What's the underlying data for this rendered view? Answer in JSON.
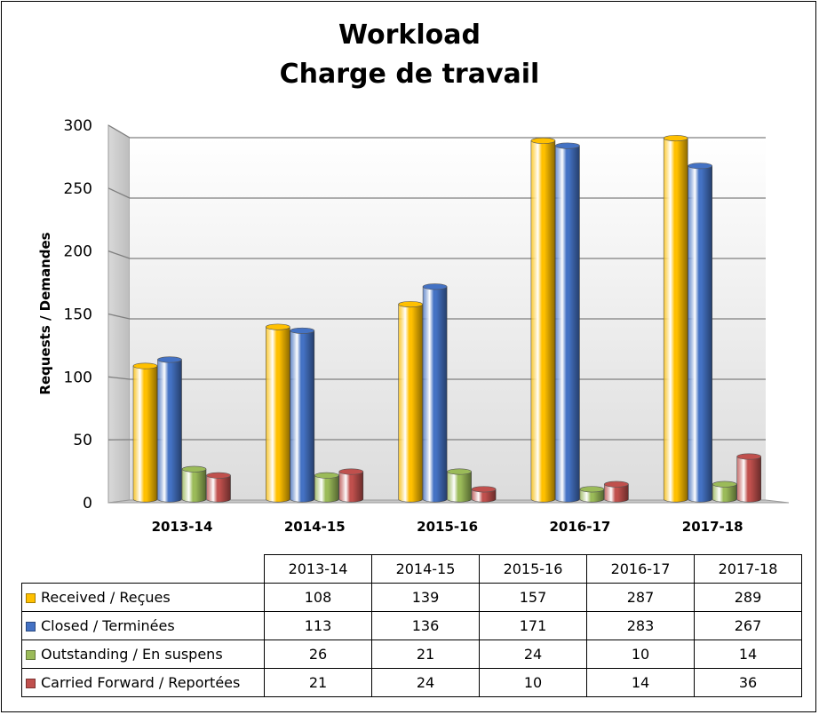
{
  "chart_data": {
    "type": "bar",
    "title": "Workload",
    "subtitle": "Charge de travail",
    "xlabel": "",
    "ylabel": "Requests / Demandes",
    "ylim": [
      0,
      300
    ],
    "yticks": [
      "0",
      "50",
      "100",
      "150",
      "200",
      "250",
      "300"
    ],
    "categories": [
      "2013-14",
      "2014-15",
      "2015-16",
      "2016-17",
      "2017-18"
    ],
    "grid": true,
    "legend": "data-table-below",
    "series": [
      {
        "name": "Received / Reçues",
        "color": "#FFC000",
        "values": [
          108,
          139,
          157,
          287,
          289
        ]
      },
      {
        "name": "Closed / Terminées",
        "color": "#4472C4",
        "values": [
          113,
          136,
          171,
          283,
          267
        ]
      },
      {
        "name": "Outstanding / En suspens",
        "color": "#9BBB59",
        "values": [
          26,
          21,
          24,
          10,
          14
        ]
      },
      {
        "name": "Carried Forward / Reportées",
        "color": "#C0504D",
        "values": [
          21,
          24,
          10,
          14,
          36
        ]
      }
    ]
  }
}
